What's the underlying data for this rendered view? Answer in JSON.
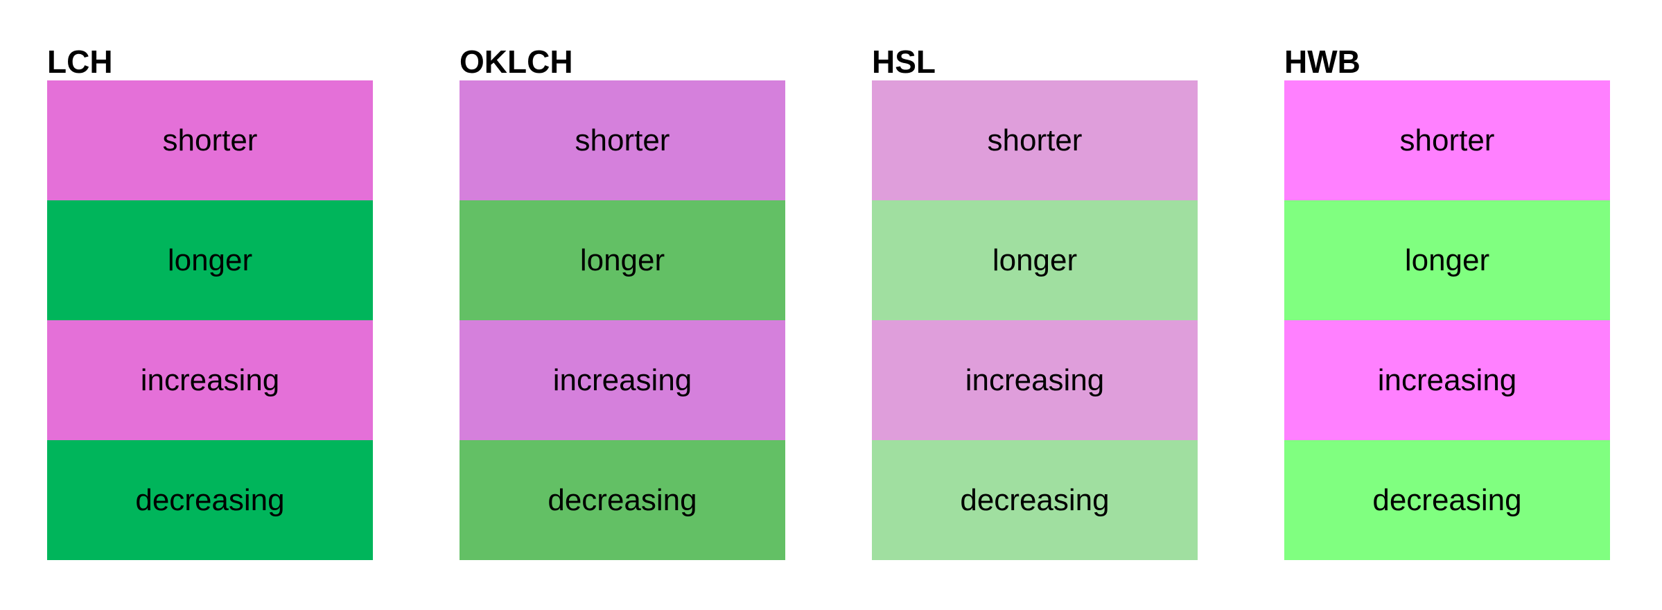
{
  "columns": [
    {
      "title": "LCH",
      "rows": [
        {
          "label": "shorter",
          "color": "#e470d8"
        },
        {
          "label": "longer",
          "color": "#00b55b"
        },
        {
          "label": "increasing",
          "color": "#e470d8"
        },
        {
          "label": "decreasing",
          "color": "#00b55b"
        }
      ]
    },
    {
      "title": "OKLCH",
      "rows": [
        {
          "label": "shorter",
          "color": "#d580dc"
        },
        {
          "label": "longer",
          "color": "#63c065"
        },
        {
          "label": "increasing",
          "color": "#d580dc"
        },
        {
          "label": "decreasing",
          "color": "#63c065"
        }
      ]
    },
    {
      "title": "HSL",
      "rows": [
        {
          "label": "shorter",
          "color": "#df9edb"
        },
        {
          "label": "longer",
          "color": "#a0dfa0"
        },
        {
          "label": "increasing",
          "color": "#df9edb"
        },
        {
          "label": "decreasing",
          "color": "#a0dfa0"
        }
      ]
    },
    {
      "title": "HWB",
      "rows": [
        {
          "label": "shorter",
          "color": "#ff80ff"
        },
        {
          "label": "longer",
          "color": "#80ff80"
        },
        {
          "label": "increasing",
          "color": "#ff80ff"
        },
        {
          "label": "decreasing",
          "color": "#80ff80"
        }
      ]
    }
  ]
}
